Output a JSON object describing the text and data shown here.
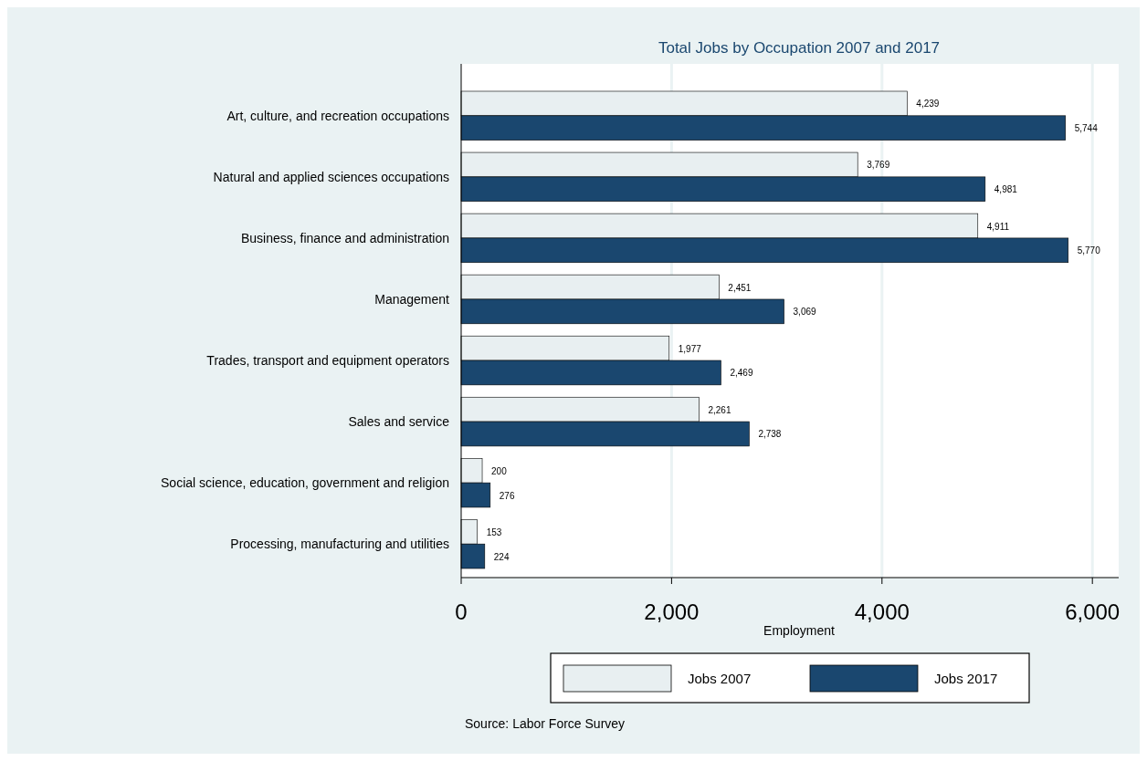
{
  "chart_data": {
    "type": "bar",
    "orientation": "horizontal",
    "title": "Total Jobs by Occupation 2007 and 2017",
    "xlabel": "Employment",
    "categories": [
      "Art, culture, and recreation occupations",
      "Natural and applied sciences occupations",
      "Business, finance and administration",
      "Management",
      "Trades, transport and equipment operators",
      "Sales and service",
      "Social science, education, government and religion",
      "Processing, manufacturing and utilities"
    ],
    "series": [
      {
        "name": "Jobs 2007",
        "color": "#e8eff1",
        "values": [
          4239,
          3769,
          4911,
          2451,
          1977,
          2261,
          200,
          153
        ],
        "value_labels": [
          "4,239",
          "3,769",
          "4,911",
          "2,451",
          "1,977",
          "2,261",
          "200",
          "153"
        ]
      },
      {
        "name": "Jobs 2017",
        "color": "#1a476f",
        "values": [
          5744,
          4981,
          5770,
          3069,
          2469,
          2738,
          276,
          224
        ],
        "value_labels": [
          "5,744",
          "4,981",
          "5,770",
          "3,069",
          "2,469",
          "2,738",
          "276",
          "224"
        ]
      }
    ],
    "xlim": [
      0,
      6250
    ],
    "xticks": [
      {
        "value": 0,
        "label": "0"
      },
      {
        "value": 2000,
        "label": "2,000"
      },
      {
        "value": 4000,
        "label": "4,000"
      },
      {
        "value": 6000,
        "label": "6,000"
      }
    ],
    "grid": "x",
    "legend": "bottom",
    "annotations": [
      "Source: Labor Force Survey"
    ]
  }
}
